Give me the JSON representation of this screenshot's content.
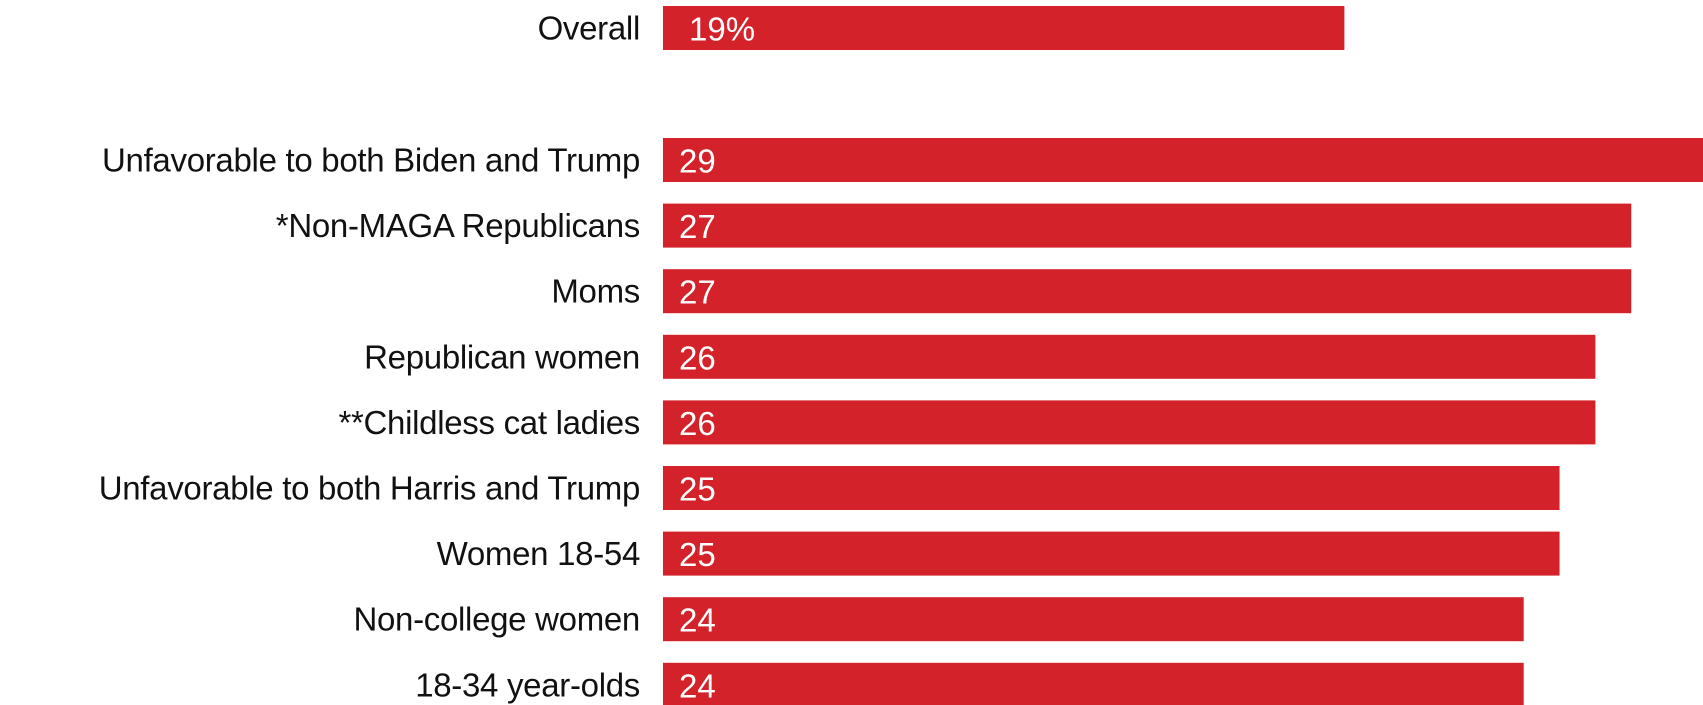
{
  "chart_data": {
    "type": "bar",
    "orientation": "horizontal",
    "bar_color": "#d4222a",
    "text_color": "#111111",
    "value_label_color": "#ffffff",
    "grid": false,
    "categories": [
      "Overall",
      "Unfavorable to both Biden and Trump",
      "*Non-MAGA Republicans",
      "Moms",
      "Republican women",
      "**Childless cat ladies",
      "Unfavorable to both Harris and Trump",
      "Women 18-54",
      "Non-college women",
      "18-34 year-olds"
    ],
    "values": [
      19,
      29,
      27,
      27,
      26,
      26,
      25,
      25,
      24,
      24
    ],
    "value_labels": [
      "19%",
      "29",
      "27",
      "27",
      "26",
      "26",
      "25",
      "25",
      "24",
      "24"
    ],
    "xlim": [
      0,
      29
    ]
  }
}
